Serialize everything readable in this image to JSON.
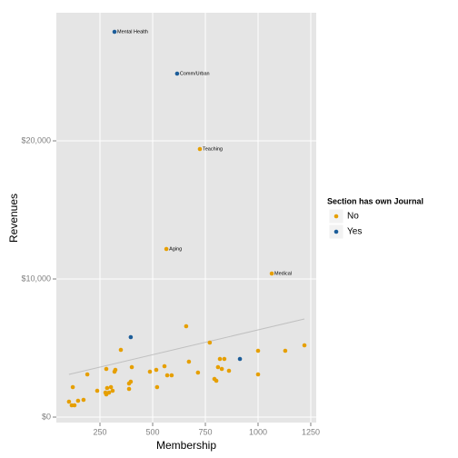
{
  "chart_data": {
    "type": "scatter",
    "xlabel": "Membership",
    "ylabel": "Revenues",
    "legend_title": "Section has own Journal",
    "legend": "right",
    "xlim": [
      43,
      1276
    ],
    "ylim": [
      -395,
      29276
    ],
    "xticks": [
      250,
      500,
      750,
      1000,
      1250
    ],
    "yticks": [
      {
        "value": 0,
        "label": "$0"
      },
      {
        "value": 10000,
        "label": "$10,000"
      },
      {
        "value": 20000,
        "label": "$20,000"
      }
    ],
    "grid": true,
    "trend": {
      "color": "#c0c0c0",
      "x": [
        103,
        1220
      ],
      "y": [
        3092,
        7105
      ]
    },
    "series": [
      {
        "name": "No",
        "color": "#e69f00",
        "x": [
          724,
          565,
          1065,
          103,
          116,
          129,
          121,
          146,
          172,
          190,
          237,
          276,
          284,
          280,
          293,
          302,
          319,
          323,
          310,
          349,
          280,
          388,
          388,
          396,
          401,
          487,
          521,
          517,
          556,
          569,
          590,
          659,
          672,
          715,
          771,
          802,
          793,
          810,
          819,
          828,
          840,
          862,
          1000,
          1000,
          1129,
          1220
        ],
        "values": [
          19408,
          12171,
          10395,
          1118,
          855,
          855,
          2171,
          1184,
          1250,
          3092,
          1908,
          1776,
          2105,
          1645,
          1776,
          2171,
          3289,
          3421,
          1908,
          4868,
          3487,
          2434,
          2039,
          2566,
          3618,
          3289,
          2171,
          3421,
          3684,
          3026,
          3026,
          6579,
          4013,
          3224,
          5395,
          2632,
          2763,
          3618,
          4211,
          3487,
          4211,
          3355,
          4803,
          3092,
          4803,
          5197
        ],
        "labels": [
          "Teaching",
          "Aging",
          "Medical",
          null,
          null,
          null,
          null,
          null,
          null,
          null,
          null,
          null,
          null,
          null,
          null,
          null,
          null,
          null,
          null,
          null,
          null,
          null,
          null,
          null,
          null,
          null,
          null,
          null,
          null,
          null,
          null,
          null,
          null,
          null,
          null,
          null,
          null,
          null,
          null,
          null,
          null,
          null,
          null,
          null,
          null,
          null
        ]
      },
      {
        "name": "Yes",
        "color": "#1c5d99",
        "x": [
          319,
          616,
          396,
          914
        ],
        "values": [
          27895,
          24868,
          5789,
          4211
        ],
        "labels": [
          "Mental Health",
          "Comm/Urban",
          null,
          null
        ]
      }
    ]
  }
}
